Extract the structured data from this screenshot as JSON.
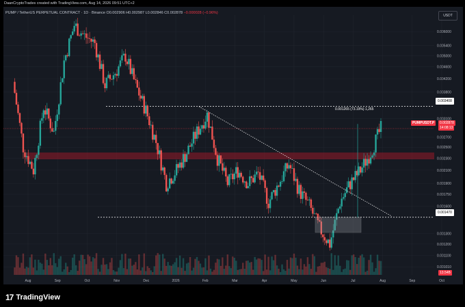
{
  "header": {
    "creator_line": "DaanCryptoTrades created with TradingView.com, Aug 14, 2026 09:51 UTC+2",
    "symbol_line": "PUMP / TetherUS PERPETUAL CONTRACT · 1D · Binance",
    "ohlc": "O0.002906 H0.002987 L0.002846 C0.002878",
    "change": "−0.000028 (−0.96%)",
    "currency_button": "USDT"
  },
  "footer": {
    "brand": "TradingView"
  },
  "annotations": {
    "measure": "0.001265 (73.19%) 1,265",
    "level_top": "0.003408",
    "level_bottom": "0.001470",
    "current_label": "PUMPUSDT.P",
    "current_price": "0.002878",
    "countdown": "14:08:13",
    "volume_label": "13.54B"
  },
  "colors": {
    "background": "#161a22",
    "up": "#26a69a",
    "down": "#ef5350",
    "resistance_band": "#b2182b",
    "grid": "#22262f",
    "text": "#b2b5be",
    "accent": "#f23645"
  },
  "chart_data": {
    "type": "candlestick",
    "title": "PUMP / TetherUS PERPETUAL CONTRACT · 1D · Binance",
    "xlabel": "",
    "ylabel": "",
    "y_scale": "log",
    "ylim": [
      0.00095,
      0.0068
    ],
    "x_ticks": [
      "Aug",
      "Sep",
      "Oct",
      "Nov",
      "Dec",
      "2026",
      "Feb",
      "Mar",
      "Apr",
      "May",
      "Jun",
      "Jul",
      "Aug",
      "Sep",
      "Oct"
    ],
    "y_ticks": [
      "0.006000",
      "0.005400",
      "0.005000",
      "0.004600",
      "0.004200",
      "0.003800",
      "0.003100",
      "0.002700",
      "0.002500",
      "0.002300",
      "0.002100",
      "0.001900",
      "0.001750",
      "0.001600",
      "0.001300",
      "0.001200",
      "0.001100",
      "0.001010"
    ],
    "price_path": [
      {
        "x": "Jul 15",
        "y": 0.0041
      },
      {
        "x": "Jul 25",
        "y": 0.0025
      },
      {
        "x": "Aug 5",
        "y": 0.0021
      },
      {
        "x": "Aug 15",
        "y": 0.0034
      },
      {
        "x": "Aug 25",
        "y": 0.0028
      },
      {
        "x": "Sep 5",
        "y": 0.0048
      },
      {
        "x": "Sep 15",
        "y": 0.0063
      },
      {
        "x": "Sep 25",
        "y": 0.0058
      },
      {
        "x": "Oct 5",
        "y": 0.0055
      },
      {
        "x": "Oct 15",
        "y": 0.004
      },
      {
        "x": "Oct 25",
        "y": 0.0044
      },
      {
        "x": "Nov 5",
        "y": 0.005
      },
      {
        "x": "Nov 15",
        "y": 0.004
      },
      {
        "x": "Nov 25",
        "y": 0.0033
      },
      {
        "x": "Dec 5",
        "y": 0.0026
      },
      {
        "x": "Dec 15",
        "y": 0.0019
      },
      {
        "x": "Dec 25",
        "y": 0.0021
      },
      {
        "x": "Jan 5",
        "y": 0.0024
      },
      {
        "x": "Jan 15",
        "y": 0.0028
      },
      {
        "x": "Jan 28",
        "y": 0.0032
      },
      {
        "x": "Feb 5",
        "y": 0.0023
      },
      {
        "x": "Feb 15",
        "y": 0.0019
      },
      {
        "x": "Feb 25",
        "y": 0.0021
      },
      {
        "x": "Mar 10",
        "y": 0.0019
      },
      {
        "x": "Mar 25",
        "y": 0.00205
      },
      {
        "x": "Apr 10",
        "y": 0.00165
      },
      {
        "x": "Apr 25",
        "y": 0.0019
      },
      {
        "x": "May 5",
        "y": 0.0022
      },
      {
        "x": "May 15",
        "y": 0.0018
      },
      {
        "x": "Jun 1",
        "y": 0.0016
      },
      {
        "x": "Jun 15",
        "y": 0.00135
      },
      {
        "x": "Jun 28",
        "y": 0.0012
      },
      {
        "x": "Jul 10",
        "y": 0.00165
      },
      {
        "x": "Jul 20",
        "y": 0.0019
      },
      {
        "x": "Jul 28",
        "y": 0.0021
      },
      {
        "x": "Aug 5",
        "y": 0.0024
      },
      {
        "x": "Aug 14",
        "y": 0.002878
      }
    ],
    "horizontal_levels": [
      0.003408,
      0.00147
    ],
    "resistance_zone": [
      0.00228,
      0.0024
    ],
    "grid": true
  }
}
